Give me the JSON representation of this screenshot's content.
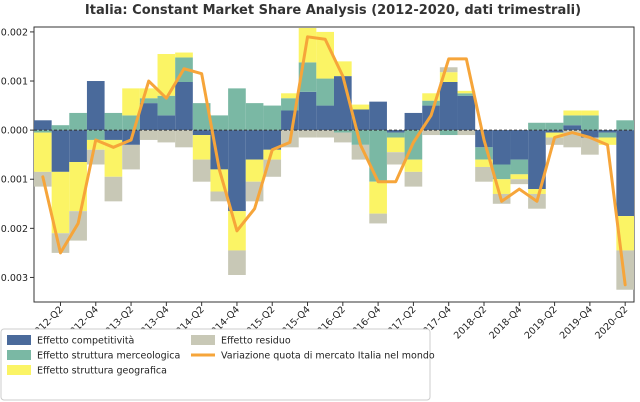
{
  "chart_data": {
    "type": "bar",
    "title": "Italia: Constant Market Share Analysis (2012-2020, dati trimestrali)",
    "xlabel": "",
    "ylabel": "",
    "ylim": [
      -0.0035,
      0.0021
    ],
    "yticks": [
      -0.003,
      -0.002,
      -0.001,
      0.0,
      0.001,
      0.002
    ],
    "ytick_labels": [
      "−0.003",
      "−0.002",
      "−0.001",
      "0.000",
      "0.001",
      "0.002"
    ],
    "zero_line": "dashed",
    "grid": false,
    "legend_position": "bottom",
    "categories": [
      "2012-Q1",
      "2012-Q2",
      "2012-Q3",
      "2012-Q4",
      "2013-Q1",
      "2013-Q2",
      "2013-Q3",
      "2013-Q4",
      "2014-Q1",
      "2014-Q2",
      "2014-Q3",
      "2014-Q4",
      "2015-Q1",
      "2015-Q2",
      "2015-Q3",
      "2015-Q4",
      "2016-Q1",
      "2016-Q2",
      "2016-Q3",
      "2016-Q4",
      "2017-Q1",
      "2017-Q2",
      "2017-Q3",
      "2017-Q4",
      "2018-Q1",
      "2018-Q2",
      "2018-Q3",
      "2018-Q4",
      "2019-Q1",
      "2019-Q2",
      "2019-Q3",
      "2019-Q4",
      "2020-Q1",
      "2020-Q2"
    ],
    "tick_labels": [
      "2012-Q2",
      "2012-Q4",
      "2013-Q2",
      "2013-Q4",
      "2014-Q2",
      "2014-Q4",
      "2015-Q2",
      "2015-Q4",
      "2016-Q2",
      "2016-Q4",
      "2017-Q2",
      "2017-Q4",
      "2018-Q2",
      "2018-Q4",
      "2019-Q2",
      "2019-Q4",
      "2020-Q2"
    ],
    "series": [
      {
        "name": "Effetto competitività",
        "color": "#4a6a9b",
        "kind": "bar",
        "values": [
          0.0002,
          -0.00085,
          -0.00065,
          0.001,
          -0.0002,
          -0.0003,
          0.00055,
          0.0003,
          0.00098,
          -0.0001,
          -0.0008,
          -0.00165,
          -0.0006,
          -0.0004,
          0.0004,
          0.00078,
          0.0005,
          0.0011,
          0.00042,
          0.00058,
          -5e-05,
          0.00035,
          0.0005,
          0.00098,
          0.0007,
          -0.00035,
          -0.0007,
          -0.0006,
          -0.0012,
          -5e-05,
          0.0001,
          -0.00015,
          -5e-05,
          -0.00175
        ]
      },
      {
        "name": "Effetto struttura merceologica",
        "color": "#7ab8a4",
        "kind": "bar",
        "values": [
          -5e-05,
          0.0001,
          0.00035,
          -0.0002,
          0.00035,
          0.0003,
          0.0001,
          0.0004,
          0.0005,
          0.00055,
          0.0003,
          0.00085,
          0.00055,
          0.0005,
          0.00025,
          0.0006,
          0.00055,
          -5e-05,
          -0.0003,
          -0.00105,
          -0.0001,
          -0.0006,
          0.0001,
          -0.0001,
          5e-05,
          -0.00025,
          -0.0003,
          -0.0003,
          0.00015,
          0.00015,
          0.0002,
          0.0003,
          -0.0001,
          0.0002
        ]
      },
      {
        "name": "Effetto struttura geografica",
        "color": "#fbf465",
        "kind": "bar",
        "values": [
          -0.0008,
          -0.00125,
          -0.001,
          -0.0002,
          -0.00075,
          0.00055,
          0.0002,
          0.00085,
          0.0001,
          -0.0005,
          -0.00045,
          -0.0008,
          -0.00045,
          -0.0002,
          0.0001,
          0.0007,
          0.00095,
          0.0003,
          0.0001,
          -0.00065,
          -0.0003,
          -0.00025,
          0.00015,
          0.0002,
          5e-05,
          -0.00015,
          -0.0003,
          -0.0001,
          -0.0001,
          -0.0001,
          0.0001,
          0.0001,
          -0.00015,
          -0.0007
        ]
      },
      {
        "name": "Effetto residuo",
        "color": "#c8c8b6",
        "kind": "bar",
        "values": [
          -0.0003,
          -0.0004,
          -0.0006,
          -0.0003,
          -0.0005,
          -0.0005,
          -0.0002,
          -0.00025,
          -0.00035,
          -0.00045,
          -0.0002,
          -0.0005,
          -0.0004,
          -0.00035,
          -0.00035,
          -0.00015,
          -0.00015,
          -0.0002,
          -0.0003,
          -0.0002,
          -0.00025,
          -0.0003,
          -0.0001,
          0.0001,
          -0.0001,
          -0.0003,
          -0.0002,
          -0.0001,
          -0.0003,
          -0.00015,
          -0.00035,
          -0.00035,
          0.0,
          -0.0008
        ]
      },
      {
        "name": "Variazione quota di mercato Italia nel mondo",
        "color": "#f6a53a",
        "kind": "line",
        "values": [
          -0.00095,
          -0.0025,
          -0.0019,
          -0.0002,
          -0.00035,
          -0.0002,
          0.001,
          0.00065,
          0.00125,
          0.00115,
          -0.0008,
          -0.00205,
          -0.0016,
          -0.0004,
          -0.00025,
          0.0019,
          0.00185,
          0.0011,
          -0.0003,
          -0.00105,
          -0.00105,
          -0.00025,
          0.0003,
          0.00145,
          0.00145,
          -0.0002,
          -0.00145,
          -0.0012,
          -0.00145,
          -0.00015,
          -5e-05,
          -0.00015,
          -0.0003,
          -0.00315
        ]
      }
    ]
  }
}
